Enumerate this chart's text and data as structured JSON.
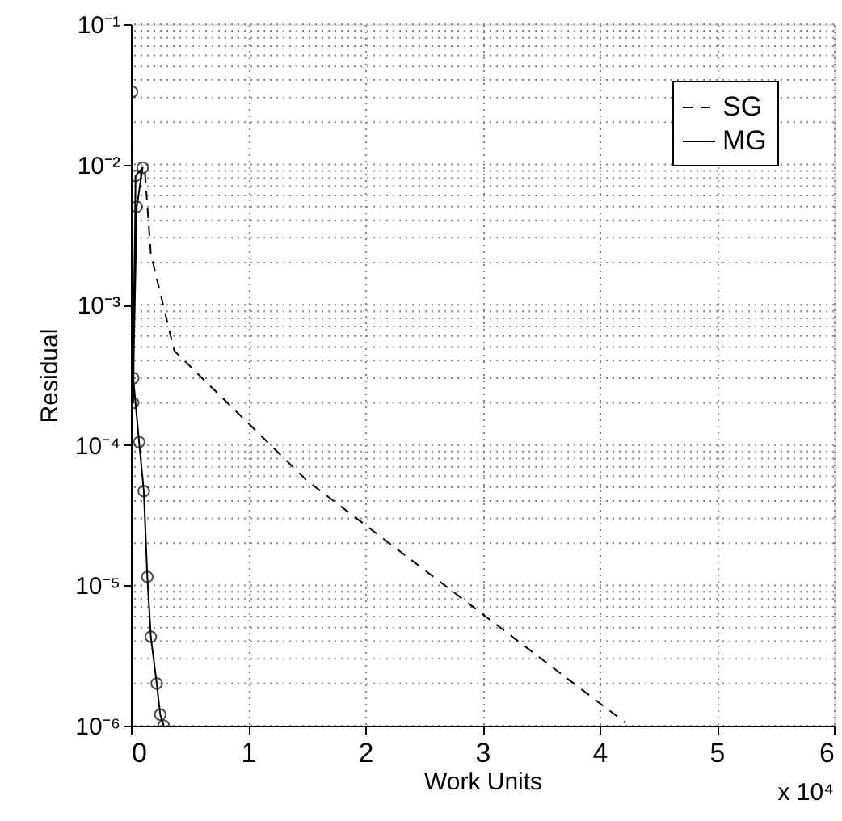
{
  "chart_data": {
    "type": "line",
    "xlabel": "Work Units",
    "ylabel": "Residual",
    "annotations": [
      "x 10⁴"
    ],
    "log": "y",
    "grid": true,
    "legend": "top right",
    "xlim": [
      0,
      6
    ],
    "xticks": [
      0,
      1,
      2,
      3,
      4,
      5,
      6
    ],
    "ylim": [
      1e-06,
      0.1
    ],
    "yticks": [
      {
        "value": 1e-06,
        "label": "10⁻⁶"
      },
      {
        "value": 1e-05,
        "label": "10⁻⁵"
      },
      {
        "value": 0.0001,
        "label": "10⁻⁴"
      },
      {
        "value": 0.001,
        "label": "10⁻³"
      },
      {
        "value": 0.01,
        "label": "10⁻²"
      },
      {
        "value": 0.1,
        "label": "10⁻¹"
      }
    ],
    "series": [
      {
        "name": "SG",
        "color": "#000000",
        "line_style": "dashed",
        "marker": "none",
        "x": [
          0.12,
          0.17,
          0.37,
          1.5,
          4.22
        ],
        "values": [
          0.0087,
          0.0023,
          0.00047,
          5.6e-05,
          1.05e-06
        ]
      },
      {
        "name": "MG",
        "color": "#000000",
        "line_style": "solid",
        "marker": "circle",
        "x": [
          0.01,
          0.02,
          0.04,
          0.1,
          0.05,
          0.02,
          0.07,
          0.11,
          0.14,
          0.17,
          0.22,
          0.25,
          0.28
        ],
        "values": [
          0.033,
          0.0002,
          0.0083,
          0.0095,
          0.005,
          0.0003,
          0.000105,
          4.7e-05,
          1.15e-05,
          4.3e-06,
          2e-06,
          1.2e-06,
          1e-06
        ]
      }
    ]
  }
}
